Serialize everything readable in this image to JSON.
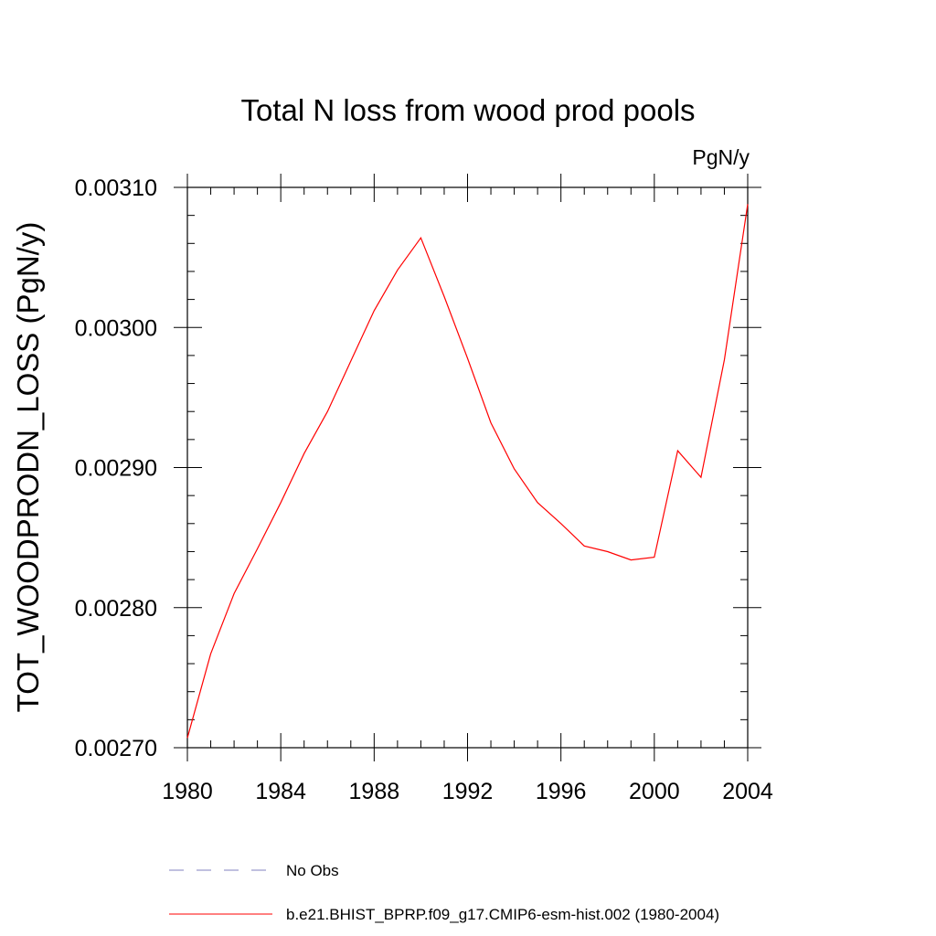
{
  "chart_data": {
    "type": "line",
    "title": "Total N loss from wood prod pools",
    "units_label": "PgN/y",
    "ylabel": "TOT_WOODPRODN_LOSS  (PgN/y)",
    "xlabel": "",
    "xlim": [
      1980,
      2004
    ],
    "ylim": [
      0.0027,
      0.0031
    ],
    "x_ticks": [
      "1980",
      "1984",
      "1988",
      "1992",
      "1996",
      "2000",
      "2004"
    ],
    "y_ticks": [
      "0.00270",
      "0.00280",
      "0.00290",
      "0.00300",
      "0.00310"
    ],
    "x": [
      1980,
      1981,
      1982,
      1983,
      1984,
      1985,
      1986,
      1987,
      1988,
      1989,
      1990,
      1991,
      1992,
      1993,
      1994,
      1995,
      1996,
      1997,
      1998,
      1999,
      2000,
      2001,
      2002,
      2003,
      2004
    ],
    "series": [
      {
        "name": "b.e21.BHIST_BPRP.f09_g17.CMIP6-esm-hist.002 (1980-2004)",
        "color": "#ff0000",
        "values": [
          0.002707,
          0.002767,
          0.00281,
          0.002842,
          0.002875,
          0.00291,
          0.00294,
          0.002976,
          0.003012,
          0.003041,
          0.003064,
          0.003022,
          0.002978,
          0.002932,
          0.002899,
          0.002875,
          0.00286,
          0.002844,
          0.00284,
          0.002834,
          0.002836,
          0.002912,
          0.002893,
          0.002977,
          0.003088
        ]
      }
    ],
    "legend": [
      {
        "label": "No Obs",
        "color": "#8080c0",
        "style": "dashed"
      },
      {
        "label": "b.e21.BHIST_BPRP.f09_g17.CMIP6-esm-hist.002 (1980-2004)",
        "color": "#ff0000",
        "style": "solid"
      }
    ],
    "legend_position": "bottom",
    "grid": false
  }
}
